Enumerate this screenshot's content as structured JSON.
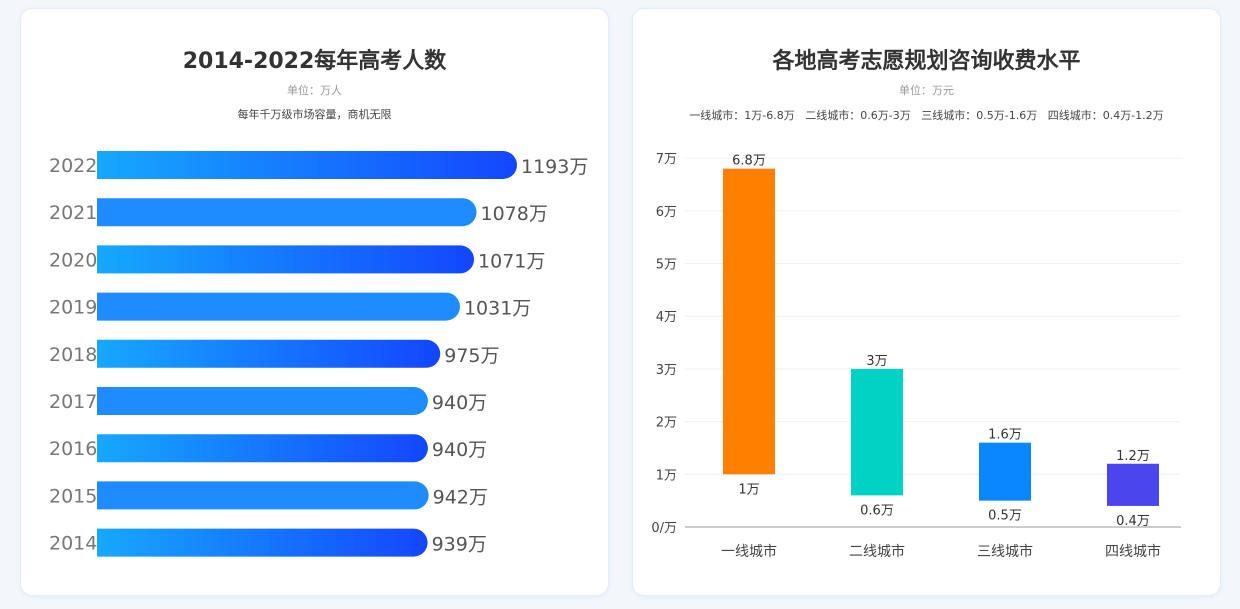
{
  "chart_data": [
    {
      "type": "bar",
      "orientation": "horizontal",
      "title": "2014-2022每年高考人数",
      "unit": "单位：万人",
      "subtitle": "每年千万级市场容量，商机无限",
      "categories": [
        "2022",
        "2021",
        "2020",
        "2019",
        "2018",
        "2017",
        "2016",
        "2015",
        "2014"
      ],
      "values": [
        1193,
        1078,
        1071,
        1031,
        975,
        940,
        940,
        942,
        939
      ],
      "labels": [
        "1193万",
        "1078万",
        "1071万",
        "1031万",
        "975万",
        "940万",
        "940万",
        "942万",
        "939万"
      ],
      "colors": {
        "gradient_start": "#16a8ff",
        "gradient_end": "#1446ff",
        "solid": "#1e8bff"
      }
    },
    {
      "type": "bar",
      "subtitle_type": "floating-range",
      "title": "各地高考志愿规划咨询收费水平",
      "unit": "单位：万元",
      "subtitle": [
        "一线城市：1万-6.8万",
        "二线城市：0.6万-3万",
        "三线城市：0.5万-1.6万",
        "四线城市：0.4万-1.2万"
      ],
      "categories": [
        "一线城市",
        "二线城市",
        "三线城市",
        "四线城市"
      ],
      "series": [
        {
          "low": [
            1,
            0.6,
            0.5,
            0.4
          ],
          "high": [
            6.8,
            3,
            1.6,
            1.2
          ]
        }
      ],
      "low_labels": [
        "1万",
        "0.6万",
        "0.5万",
        "0.4万"
      ],
      "high_labels": [
        "6.8万",
        "3万",
        "1.6万",
        "1.2万"
      ],
      "colors": [
        "#ff7f00",
        "#00d3c3",
        "#0a86ff",
        "#4b45ee"
      ],
      "ylim": [
        0,
        7
      ],
      "yticks": [
        "0/万",
        "1万",
        "2万",
        "3万",
        "4万",
        "5万",
        "6万",
        "7万"
      ],
      "grid": true
    }
  ]
}
